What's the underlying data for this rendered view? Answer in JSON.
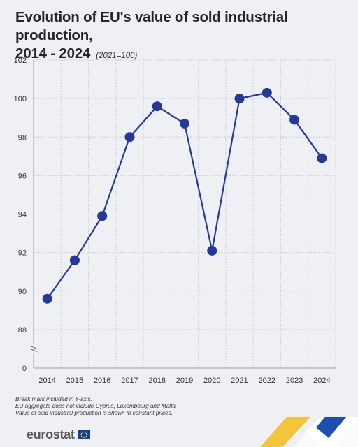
{
  "header": {
    "title_line1": "Evolution of EU's value of sold industrial production,",
    "title_line2": "2014 - 2024",
    "subtitle": "(2021=100)"
  },
  "notes": [
    "Break mark included in Y-axis.",
    "EU aggregate does not include Cyprus, Luxembourg and Malta.",
    "Value of sold industrial production is shown in constant prices."
  ],
  "brand": {
    "logo_text": "eurostat",
    "flag_icon": "eu-flag-icon"
  },
  "colors": {
    "series": "#26399a",
    "grid": "#c9cdd4",
    "background": "#eef0f3",
    "text": "#333333"
  },
  "chart_data": {
    "type": "line",
    "title": "Evolution of EU's value of sold industrial production, 2014 - 2024",
    "subtitle": "(2021=100)",
    "xlabel": "",
    "ylabel": "",
    "categories": [
      "2014",
      "2015",
      "2016",
      "2017",
      "2018",
      "2019",
      "2020",
      "2021",
      "2022",
      "2023",
      "2024"
    ],
    "series": [
      {
        "values": [
          89.6,
          91.6,
          93.9,
          98.0,
          99.6,
          98.7,
          92.1,
          100.0,
          100.3,
          98.9,
          96.9
        ]
      }
    ],
    "yticks": [
      "102",
      "100",
      "98",
      "96",
      "94",
      "92",
      "90",
      "88",
      "0"
    ],
    "ylim": [
      86,
      102
    ],
    "y_break": true,
    "grid": true,
    "legend": "none"
  }
}
